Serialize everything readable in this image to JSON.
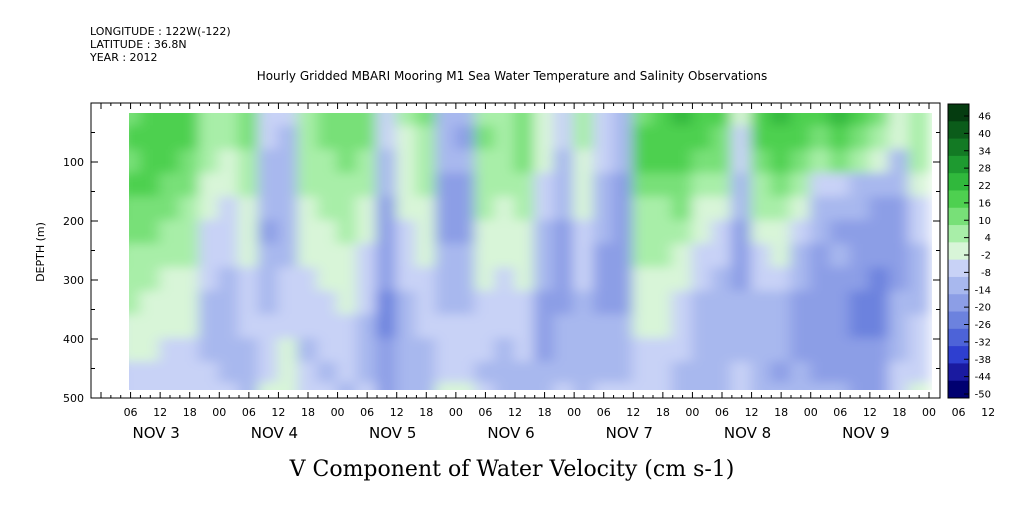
{
  "meta": {
    "longitude": "LONGITUDE : 122W(-122)",
    "latitude": "LATITUDE : 36.8N",
    "year": "YEAR : 2012"
  },
  "chart_data": {
    "type": "heatmap",
    "title": "Hourly Gridded MBARI Mooring M1 Sea Water Temperature and Salinity Observations",
    "xlabel": "V Component of Water Velocity (cm s-1)",
    "ylabel": "DEPTH (m)",
    "x_hour_ticks": [
      "06",
      "12",
      "18",
      "00",
      "06",
      "12",
      "18",
      "00",
      "06",
      "12",
      "18",
      "00",
      "06",
      "12",
      "18",
      "00",
      "06",
      "12",
      "18",
      "00",
      "06",
      "12",
      "18",
      "00",
      "06",
      "12",
      "18",
      "00",
      "06",
      "12",
      "18",
      "00"
    ],
    "x_day_labels": [
      "NOV 3",
      "NOV 4",
      "NOV 5",
      "NOV 6",
      "NOV 7",
      "NOV 8",
      "NOV 9"
    ],
    "x_range_hours": [
      0,
      168
    ],
    "y_ticks": [
      100,
      200,
      300,
      400,
      500
    ],
    "y_range": [
      0,
      500
    ],
    "y_inverted": true,
    "colorbar": {
      "labels": [
        "46",
        "40",
        "34",
        "28",
        "22",
        "16",
        "10",
        "4",
        "-2",
        "-8",
        "-14",
        "-20",
        "-26",
        "-32",
        "-38",
        "-44",
        "-50"
      ],
      "range": [
        -50,
        50
      ],
      "colors_low_to_high": [
        "#000070",
        "#1a1aa0",
        "#2e3fd0",
        "#4d63d8",
        "#6c82de",
        "#8c9ee6",
        "#a8b8ee",
        "#c8d2f6",
        "#d8f5d8",
        "#a8eea8",
        "#78e078",
        "#4ed050",
        "#30b83c",
        "#1e9a30",
        "#137a24",
        "#0b5c1a",
        "#053c10"
      ]
    },
    "depth_bins_m": [
      20,
      60,
      100,
      140,
      180,
      220,
      260,
      300,
      340,
      380,
      420,
      460,
      490
    ],
    "time_bins_hours": [
      2,
      6,
      10,
      14,
      18,
      22,
      26,
      30,
      34,
      38,
      42,
      46,
      50,
      54,
      58,
      62,
      66,
      70,
      74,
      78,
      82,
      86,
      90,
      94,
      98,
      102,
      106,
      110,
      114,
      118,
      122,
      126,
      130,
      134,
      138,
      142,
      146,
      150,
      154,
      158,
      162,
      166
    ],
    "values": [
      [
        10,
        14,
        16,
        18,
        16,
        8,
        6,
        12,
        -4,
        -8,
        6,
        10,
        12,
        14,
        -6,
        4,
        10,
        -12,
        -14,
        8,
        6,
        10,
        2,
        -6,
        6,
        -4,
        -10,
        14,
        16,
        22,
        18,
        16,
        -2,
        20,
        22,
        20,
        18,
        24,
        16,
        10,
        2,
        4
      ],
      [
        8,
        16,
        18,
        20,
        16,
        6,
        4,
        10,
        -6,
        -10,
        8,
        10,
        12,
        10,
        -8,
        2,
        8,
        -14,
        -16,
        10,
        8,
        12,
        2,
        -8,
        4,
        -6,
        -12,
        16,
        18,
        20,
        16,
        14,
        -4,
        18,
        20,
        18,
        14,
        20,
        12,
        6,
        -2,
        6
      ],
      [
        12,
        14,
        20,
        18,
        12,
        4,
        2,
        6,
        -10,
        -12,
        6,
        8,
        10,
        6,
        -10,
        2,
        6,
        -12,
        -14,
        8,
        6,
        10,
        0,
        -10,
        2,
        -8,
        -14,
        16,
        16,
        18,
        12,
        10,
        -8,
        14,
        18,
        14,
        8,
        12,
        6,
        -2,
        -10,
        4
      ],
      [
        14,
        16,
        18,
        14,
        10,
        2,
        0,
        4,
        -12,
        -14,
        4,
        6,
        8,
        4,
        -14,
        0,
        4,
        -16,
        -16,
        6,
        4,
        8,
        -4,
        -12,
        0,
        -10,
        -16,
        12,
        12,
        14,
        6,
        4,
        -12,
        8,
        10,
        6,
        -4,
        -6,
        -10,
        -12,
        -14,
        2
      ],
      [
        16,
        14,
        14,
        10,
        8,
        -2,
        -4,
        2,
        -14,
        -14,
        2,
        4,
        6,
        2,
        -16,
        -2,
        2,
        -18,
        -18,
        4,
        2,
        4,
        -8,
        -14,
        -2,
        -12,
        -18,
        8,
        8,
        10,
        2,
        0,
        -14,
        4,
        6,
        0,
        -10,
        -12,
        -14,
        -16,
        -18,
        -4
      ],
      [
        12,
        10,
        10,
        6,
        6,
        -4,
        -6,
        0,
        -16,
        -12,
        0,
        2,
        4,
        0,
        -18,
        -4,
        0,
        -16,
        -16,
        2,
        0,
        2,
        -10,
        -16,
        -4,
        -14,
        -20,
        6,
        6,
        6,
        -2,
        -4,
        -16,
        0,
        2,
        -8,
        -14,
        -16,
        -16,
        -18,
        -20,
        -8
      ],
      [
        10,
        8,
        6,
        4,
        4,
        -6,
        -8,
        -2,
        -14,
        -10,
        -2,
        0,
        2,
        -4,
        -20,
        -6,
        -2,
        -14,
        -14,
        0,
        -2,
        0,
        -12,
        -18,
        -6,
        -16,
        -20,
        4,
        4,
        2,
        -6,
        -8,
        -18,
        -4,
        -2,
        -12,
        -16,
        -14,
        -18,
        -20,
        -18,
        -10
      ],
      [
        8,
        6,
        4,
        2,
        2,
        -8,
        -10,
        -4,
        -12,
        -8,
        -4,
        -2,
        0,
        -6,
        -20,
        -8,
        -4,
        -12,
        -12,
        -2,
        -4,
        -2,
        -14,
        -18,
        -8,
        -18,
        -18,
        2,
        2,
        -2,
        -8,
        -10,
        -16,
        -8,
        -6,
        -14,
        -18,
        -16,
        -20,
        -22,
        -16,
        -12
      ],
      [
        6,
        4,
        2,
        0,
        0,
        -10,
        -12,
        -6,
        -10,
        -6,
        -6,
        -4,
        -2,
        -8,
        -22,
        -10,
        -6,
        -10,
        -10,
        -4,
        -6,
        -4,
        -16,
        -16,
        -10,
        -16,
        -16,
        0,
        0,
        -4,
        -10,
        -12,
        -14,
        -10,
        -10,
        -16,
        -20,
        -18,
        -22,
        -24,
        -14,
        -10
      ],
      [
        -4,
        2,
        0,
        -2,
        -2,
        -12,
        -14,
        -8,
        -8,
        -4,
        -8,
        -6,
        -4,
        -10,
        -22,
        -12,
        -8,
        -8,
        -8,
        -6,
        -8,
        -6,
        -18,
        -14,
        -12,
        -14,
        -14,
        -2,
        -2,
        -6,
        -12,
        -14,
        -12,
        -12,
        -12,
        -18,
        -20,
        -20,
        -22,
        -22,
        -12,
        -8
      ],
      [
        -8,
        -2,
        -2,
        -4,
        -4,
        -10,
        -12,
        -10,
        -6,
        -2,
        -10,
        -8,
        -6,
        -12,
        -20,
        -14,
        -10,
        -6,
        -6,
        -8,
        -10,
        -8,
        -16,
        -12,
        -14,
        -12,
        -12,
        -4,
        -4,
        -8,
        -14,
        -14,
        -10,
        -14,
        -14,
        -16,
        -18,
        -18,
        -20,
        -20,
        -10,
        -6
      ],
      [
        -10,
        -6,
        -4,
        -6,
        -6,
        -8,
        -10,
        -12,
        -4,
        0,
        -8,
        -10,
        -8,
        -10,
        -18,
        -12,
        -12,
        -4,
        -4,
        -10,
        -12,
        -10,
        -14,
        -10,
        -12,
        -10,
        -10,
        -6,
        -6,
        -10,
        -12,
        -12,
        -8,
        -12,
        -16,
        -14,
        -16,
        -16,
        -18,
        -18,
        -8,
        -4
      ],
      [
        -12,
        -8,
        -6,
        -8,
        -8,
        -6,
        -8,
        -10,
        -2,
        2,
        -6,
        -8,
        -10,
        -8,
        -16,
        -10,
        -10,
        -2,
        -2,
        -8,
        -10,
        -12,
        -12,
        -8,
        -10,
        -8,
        -8,
        -8,
        -8,
        -12,
        -10,
        -10,
        -6,
        -10,
        -14,
        -12,
        -14,
        -14,
        -16,
        -16,
        -6,
        -2
      ]
    ]
  }
}
